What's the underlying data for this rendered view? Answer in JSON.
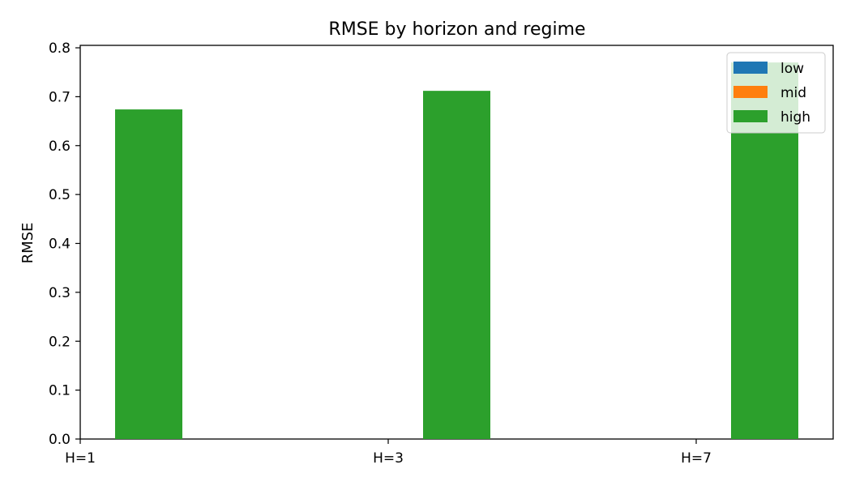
{
  "chart_data": {
    "type": "bar",
    "title": "RMSE by horizon and regime",
    "xlabel": "",
    "ylabel": "RMSE",
    "categories": [
      "H=1",
      "H=3",
      "H=7"
    ],
    "ylim": [
      0,
      0.805
    ],
    "yticks": [
      0.0,
      0.1,
      0.2,
      0.3,
      0.4,
      0.5,
      0.6,
      0.7,
      0.8
    ],
    "ytick_labels": [
      "0.0",
      "0.1",
      "0.2",
      "0.3",
      "0.4",
      "0.5",
      "0.6",
      "0.7",
      "0.8"
    ],
    "grid": false,
    "legend_position": "top-right",
    "series": [
      {
        "name": "low",
        "color": "#1f77b4",
        "values": [
          0,
          0,
          0
        ]
      },
      {
        "name": "mid",
        "color": "#ff7f0e",
        "values": [
          0,
          0,
          0
        ]
      },
      {
        "name": "high",
        "color": "#2ca02c",
        "values": [
          0.674,
          0.712,
          0.77
        ]
      }
    ]
  }
}
